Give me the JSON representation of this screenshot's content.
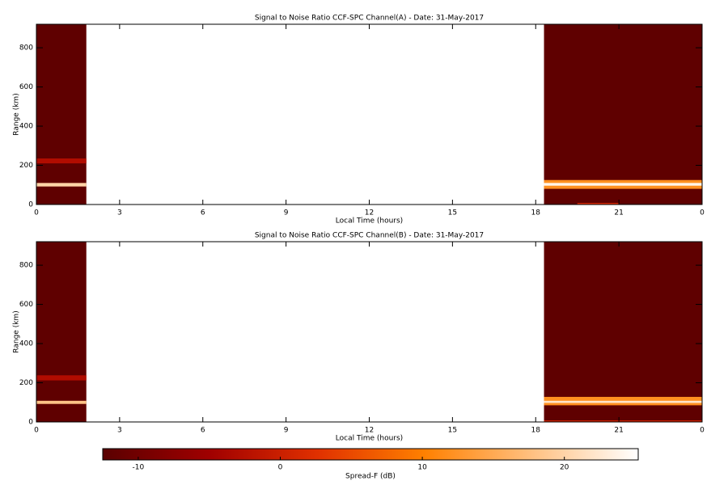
{
  "chart_data": [
    {
      "type": "heatmap",
      "title": "Signal to Noise Ratio CCF-SPC Channel(A) - Date: 31-May-2017",
      "xlabel": "Local Time (hours)",
      "ylabel": "Range (km)",
      "xlim": [
        0,
        24
      ],
      "xticks": [
        0,
        3,
        6,
        9,
        12,
        15,
        18,
        21,
        {
          "value": 24,
          "label": "0"
        }
      ],
      "ylim": [
        0,
        920
      ],
      "yticks": [
        0,
        200,
        400,
        600,
        800
      ],
      "cells": [
        {
          "x": [
            0,
            1.8
          ],
          "y": [
            0,
            920
          ],
          "value": -12
        },
        {
          "x": [
            0,
            1.8
          ],
          "y": [
            210,
            235
          ],
          "value": -3
        },
        {
          "x": [
            0,
            1.8
          ],
          "y": [
            92,
            110
          ],
          "value": 20
        },
        {
          "x": [
            18.3,
            24
          ],
          "y": [
            0,
            920
          ],
          "value": -12
        },
        {
          "x": [
            18.3,
            24
          ],
          "y": [
            80,
            125
          ],
          "value": 12
        },
        {
          "x": [
            18.3,
            24
          ],
          "y": [
            96,
            110
          ],
          "value": 24
        },
        {
          "x": [
            19.5,
            21
          ],
          "y": [
            0,
            8
          ],
          "value": 2
        }
      ]
    },
    {
      "type": "heatmap",
      "title": "Signal to Noise Ratio CCF-SPC Channel(B) - Date: 31-May-2017",
      "xlabel": "Local Time (hours)",
      "ylabel": "Range (km)",
      "xlim": [
        0,
        24
      ],
      "xticks": [
        0,
        3,
        6,
        9,
        12,
        15,
        18,
        21,
        {
          "value": 24,
          "label": "0"
        }
      ],
      "ylim": [
        0,
        920
      ],
      "yticks": [
        0,
        200,
        400,
        600,
        800
      ],
      "cells": [
        {
          "x": [
            0,
            1.8
          ],
          "y": [
            0,
            920
          ],
          "value": -12
        },
        {
          "x": [
            0,
            1.8
          ],
          "y": [
            212,
            238
          ],
          "value": -3
        },
        {
          "x": [
            0,
            1.8
          ],
          "y": [
            92,
            108
          ],
          "value": 18
        },
        {
          "x": [
            18.3,
            24
          ],
          "y": [
            0,
            920
          ],
          "value": -12
        },
        {
          "x": [
            18.3,
            24
          ],
          "y": [
            85,
            128
          ],
          "value": 12
        },
        {
          "x": [
            18.3,
            24
          ],
          "y": [
            97,
            108
          ],
          "value": 22
        },
        {
          "x": [
            18.3,
            24
          ],
          "y": [
            0,
            8
          ],
          "value": 0
        }
      ]
    }
  ],
  "colorbar": {
    "label": "Spread-F (dB)",
    "zlim": [
      -12.5,
      25.2
    ],
    "zticks": [
      -10,
      0,
      10,
      20
    ],
    "colormap": [
      "#5a0000",
      "#a00000",
      "#e03000",
      "#ff8000",
      "#ffc080",
      "#ffffff"
    ]
  }
}
